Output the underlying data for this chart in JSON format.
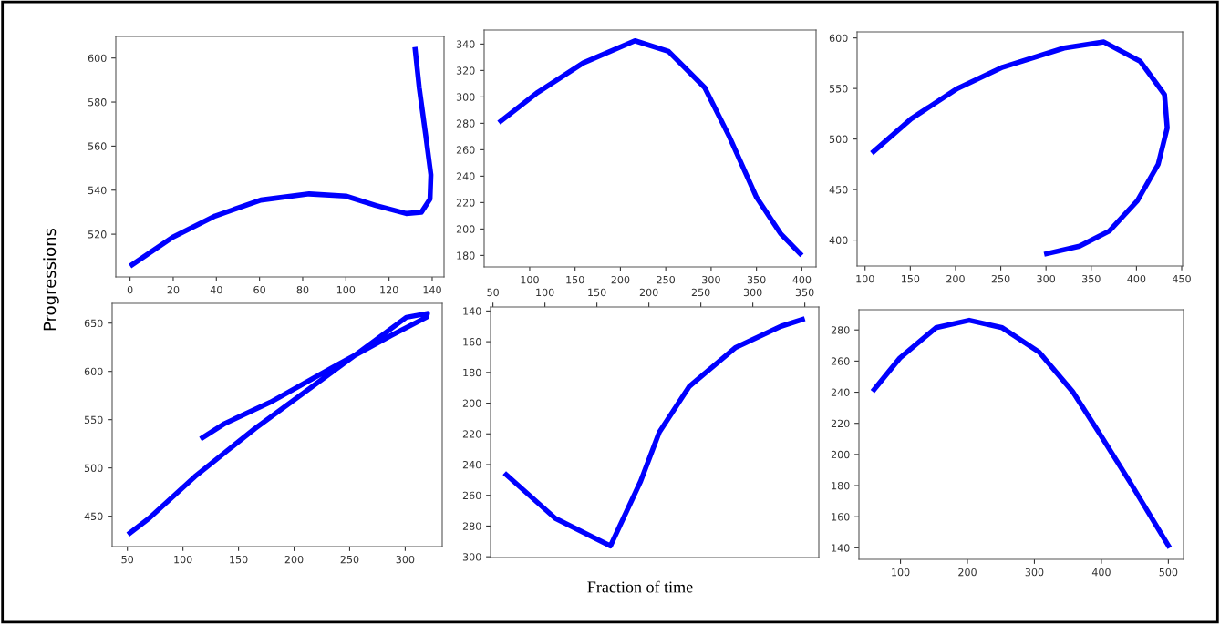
{
  "chart_data": [
    {
      "type": "line",
      "ylabel": "Progressions",
      "xlim": [
        -6.6,
        145.5
      ],
      "ylim": [
        500.6,
        609.8
      ],
      "xticks": [
        0,
        20,
        40,
        60,
        80,
        100,
        120,
        140
      ],
      "yticks": [
        520,
        540,
        560,
        580,
        600
      ],
      "series": [
        {
          "color": "#0000ff",
          "x": [
            0,
            19.7,
            39.5,
            60.6,
            83,
            100,
            114,
            128,
            135,
            139,
            139.4,
            137,
            134,
            132
          ],
          "values": [
            505.5,
            518.6,
            528.3,
            535.5,
            538.3,
            537.3,
            533,
            529.4,
            530,
            536,
            547,
            565,
            586.5,
            605
          ]
        }
      ]
    },
    {
      "type": "line",
      "xlim": [
        49.8,
        415.7
      ],
      "ylim": [
        171.3,
        350.6
      ],
      "xticks": [
        100,
        150,
        200,
        250,
        300,
        350,
        400
      ],
      "yticks": [
        180,
        200,
        220,
        240,
        260,
        280,
        300,
        320,
        340
      ],
      "series": [
        {
          "color": "#0000ff",
          "x": [
            66,
            109,
            159,
            216,
            253,
            293,
            320,
            350,
            376.5,
            400
          ],
          "values": [
            280.5,
            303.5,
            325.7,
            342.5,
            334.5,
            307,
            270,
            224,
            196.6,
            180
          ]
        }
      ]
    },
    {
      "type": "line",
      "xlim": [
        91.2,
        451
      ],
      "ylim": [
        374.4,
        606
      ],
      "xticks": [
        100,
        150,
        200,
        250,
        300,
        350,
        400,
        450
      ],
      "yticks": [
        400,
        450,
        500,
        550,
        600
      ],
      "series": [
        {
          "color": "#0000ff",
          "x": [
            107.4,
            151,
            202,
            252,
            320,
            364,
            404,
            431,
            434,
            424,
            401,
            370,
            337,
            298
          ],
          "values": [
            486,
            520,
            550,
            571,
            590,
            596,
            577,
            544,
            511,
            475,
            439,
            409,
            394,
            386
          ]
        }
      ]
    },
    {
      "type": "line",
      "xlim": [
        36.3,
        333.3
      ],
      "ylim": [
        418.5,
        670.5
      ],
      "xticks": [
        50,
        100,
        150,
        200,
        250,
        300
      ],
      "yticks": [
        450,
        500,
        550,
        600,
        650
      ],
      "series": [
        {
          "color": "#0000ff",
          "x": [
            50.5,
            69.7,
            110.7,
            165,
            219.6,
            274,
            301,
            320,
            319,
            287,
            233,
            178.6,
            137.6,
            115.8
          ],
          "values": [
            431,
            448,
            491,
            541,
            587,
            633,
            656,
            660,
            656,
            637,
            603,
            568,
            546,
            530
          ]
        }
      ]
    },
    {
      "type": "line",
      "xlabel": "Fraction of time",
      "xlim": [
        47.7,
        363.5
      ],
      "ylim": [
        300.5,
        137.4
      ],
      "xticks": [
        50,
        100,
        150,
        200,
        250,
        300,
        350
      ],
      "yticks": [
        140,
        160,
        180,
        200,
        220,
        240,
        260,
        280,
        300
      ],
      "series": [
        {
          "color": "#0000ff",
          "x": [
            61,
            110,
            163,
            192,
            210,
            239,
            283,
            327,
            350
          ],
          "values": [
            245.5,
            275,
            293,
            251,
            219,
            189,
            164,
            150,
            145
          ]
        }
      ]
    },
    {
      "type": "line",
      "xlim": [
        38,
        522.6
      ],
      "ylim": [
        132.6,
        293
      ],
      "xticks": [
        100,
        200,
        300,
        400,
        500
      ],
      "yticks": [
        140,
        160,
        180,
        200,
        220,
        240,
        260,
        280
      ],
      "series": [
        {
          "color": "#0000ff",
          "x": [
            58.3,
            99,
            153,
            202.7,
            252,
            307,
            357,
            398,
            443,
            502
          ],
          "values": [
            240.4,
            261.9,
            281.4,
            286.2,
            281.4,
            265.8,
            240.4,
            213,
            182,
            140
          ]
        }
      ]
    }
  ]
}
